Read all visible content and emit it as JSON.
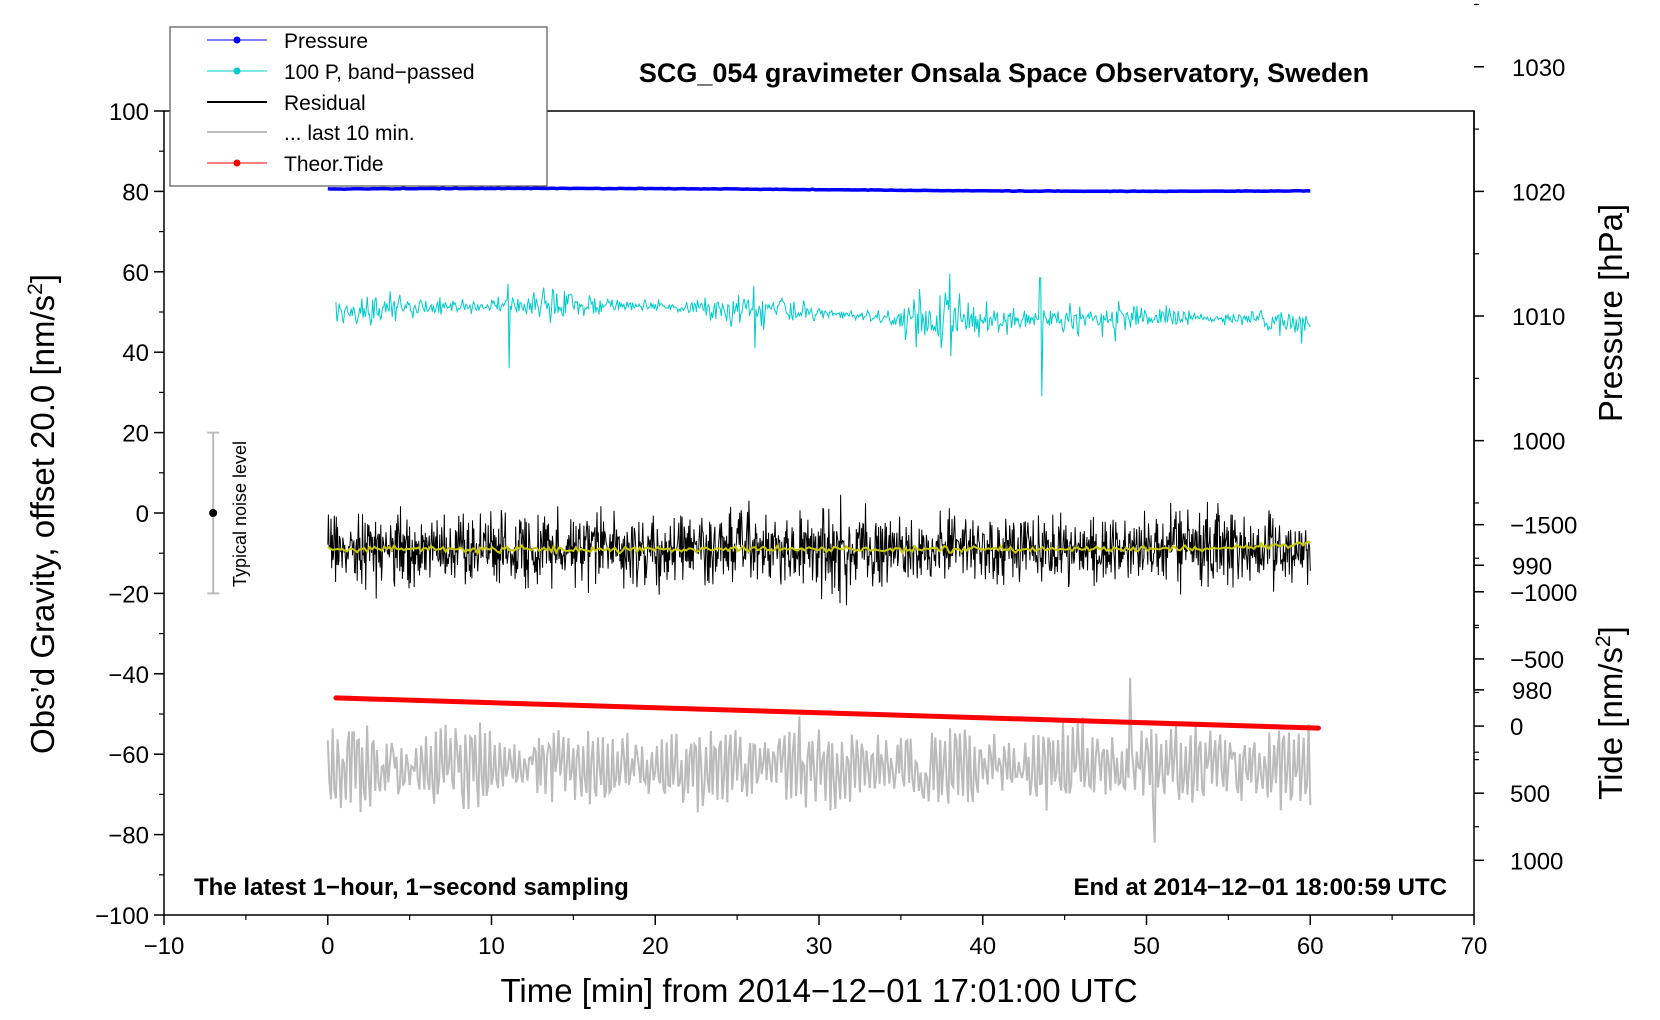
{
  "chart_data": {
    "type": "line",
    "title": "SCG_054 gravimeter Onsala Space Observatory, Sweden",
    "xlabel": "Time [min] from 2014−12−01 17:01:00 UTC",
    "ylabel_left": "Obs’d Gravity, offset 20.0 [nm/s",
    "ylabel_left_sup": "2",
    "ylabel_left_close": "]",
    "ylabel_right_pressure": "Pressure [hPa]",
    "ylabel_right_tide": "Tide [nm/s",
    "ylabel_right_tide_sup": "2",
    "ylabel_right_tide_close": "]",
    "xlim": [
      -10,
      70
    ],
    "ylim_left": [
      -100,
      100
    ],
    "pressure_ylim": [
      970,
      1035
    ],
    "tide_ylim": [
      -1500,
      1000
    ],
    "x_ticks": [
      -10,
      0,
      10,
      20,
      30,
      40,
      50,
      60,
      70
    ],
    "x_tick_labels": [
      "−10",
      "0",
      "10",
      "20",
      "30",
      "40",
      "50",
      "60",
      "70"
    ],
    "y_ticks_left": [
      -100,
      -80,
      -60,
      -40,
      -20,
      0,
      20,
      40,
      60,
      80,
      100
    ],
    "y_tick_labels_left": [
      "−100",
      "−80",
      "−60",
      "−40",
      "−20",
      "0",
      "20",
      "40",
      "60",
      "80",
      "100"
    ],
    "pressure_ticks": [
      980,
      990,
      1000,
      1010,
      1020,
      1030
    ],
    "pressure_tick_labels": [
      "980",
      "990",
      "1000",
      "1010",
      "1020",
      "1030"
    ],
    "tide_ticks": [
      -1500,
      -1000,
      -500,
      0,
      500,
      1000
    ],
    "tide_tick_labels": [
      "−1500",
      "−1000",
      "−500",
      "0",
      "500",
      "1000"
    ],
    "legend": [
      {
        "label": "Pressure",
        "color": "#0000ff",
        "marker": true
      },
      {
        "label": "100 P, band−passed",
        "color": "#00cccc",
        "marker": true
      },
      {
        "label": "Residual",
        "color": "#000000",
        "marker": false
      },
      {
        "label": "... last 10 min.",
        "color": "#bbbbbb",
        "marker": false
      },
      {
        "label": "Theor.Tide",
        "color": "#ff0000",
        "marker": true
      }
    ],
    "annotations": {
      "left_note": "The latest 1−hour, 1−second sampling",
      "right_note": "End at 2014−12−01 18:00:59 UTC",
      "noise_label": "Typical noise level",
      "noise_bar": {
        "x": -7,
        "center": 0,
        "low": -20,
        "high": 20
      }
    },
    "series": [
      {
        "name": "Pressure",
        "color": "#0000ff",
        "x_range": [
          0,
          60
        ],
        "y_start": 80.6,
        "y_end": 80.2,
        "noise_amplitude": 0.3
      },
      {
        "name": "100 P, band−passed",
        "color": "#00cccc",
        "x_range": [
          0.5,
          60
        ],
        "y_mean": 50,
        "typical_amplitude": 3,
        "extremes": [
          [
            11,
            57,
            36
          ],
          [
            26,
            56.5,
            41
          ],
          [
            38,
            59.5,
            39
          ],
          [
            43.5,
            58.5,
            29
          ]
        ]
      },
      {
        "name": "Residual",
        "color": "#000000",
        "x_range": [
          0,
          60
        ],
        "y_mean": -9,
        "y_min": -30,
        "y_max": 12.5
      },
      {
        "name": "Residual (smoothed)",
        "color": "#c8c800",
        "x_range": [
          0,
          60
        ],
        "y_mean": -9,
        "y_end": -7.5
      },
      {
        "name": "... last 10 min.",
        "color": "#bbbbbb",
        "x_range": [
          0,
          60
        ],
        "y_mean": -63,
        "y_min": -82,
        "y_max": -41
      },
      {
        "name": "Theor.Tide",
        "color": "#ff0000",
        "x_range": [
          0.5,
          60.5
        ],
        "y_start": -46,
        "y_end": -53.5
      }
    ]
  }
}
